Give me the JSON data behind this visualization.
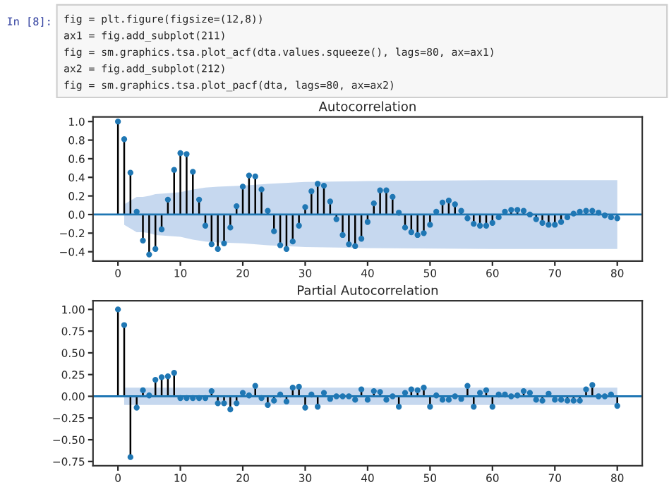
{
  "chart_data": [
    {
      "type": "lollipop",
      "title": "Autocorrelation",
      "annotations": [
        "In [8]:",
        "fig = plt.figure(figsize=(12,8))",
        "ax1 = fig.add_subplot(211)",
        "fig = sm.graphics.tsa.plot_acf(dta.values.squeeze(), lags=80, ax=ax1)",
        "ax2 = fig.add_subplot(212)",
        "fig = sm.graphics.tsa.plot_pacf(dta, lags=80, ax=ax2)"
      ],
      "x": [
        0,
        1,
        2,
        3,
        4,
        5,
        6,
        7,
        8,
        9,
        10,
        11,
        12,
        13,
        14,
        15,
        16,
        17,
        18,
        19,
        20,
        21,
        22,
        23,
        24,
        25,
        26,
        27,
        28,
        29,
        30,
        31,
        32,
        33,
        34,
        35,
        36,
        37,
        38,
        39,
        40,
        41,
        42,
        43,
        44,
        45,
        46,
        47,
        48,
        49,
        50,
        51,
        52,
        53,
        54,
        55,
        56,
        57,
        58,
        59,
        60,
        61,
        62,
        63,
        64,
        65,
        66,
        67,
        68,
        69,
        70,
        71,
        72,
        73,
        74,
        75,
        76,
        77,
        78,
        79,
        80
      ],
      "series": [
        {
          "color": "#1f77b4",
          "values": [
            1.0,
            0.81,
            0.45,
            0.03,
            -0.28,
            -0.43,
            -0.37,
            -0.16,
            0.16,
            0.48,
            0.66,
            0.65,
            0.46,
            0.16,
            -0.12,
            -0.32,
            -0.37,
            -0.31,
            -0.14,
            0.09,
            0.3,
            0.42,
            0.41,
            0.27,
            0.04,
            -0.18,
            -0.33,
            -0.37,
            -0.29,
            -0.12,
            0.08,
            0.25,
            0.33,
            0.31,
            0.14,
            -0.05,
            -0.22,
            -0.32,
            -0.34,
            -0.26,
            -0.08,
            0.12,
            0.26,
            0.26,
            0.19,
            0.02,
            -0.14,
            -0.19,
            -0.22,
            -0.2,
            -0.11,
            0.03,
            0.13,
            0.15,
            0.11,
            0.04,
            -0.04,
            -0.1,
            -0.12,
            -0.12,
            -0.09,
            -0.03,
            0.03,
            0.05,
            0.05,
            0.04,
            0.0,
            -0.05,
            -0.09,
            -0.11,
            -0.11,
            -0.08,
            -0.03,
            0.01,
            0.03,
            0.04,
            0.04,
            0.02,
            -0.01,
            -0.03,
            -0.04
          ]
        },
        {
          "type": "area",
          "color": "#aec7e8",
          "x": [
            1,
            2,
            3,
            4,
            5,
            6,
            8,
            10,
            12,
            14,
            16,
            20,
            24,
            30,
            40,
            60,
            80
          ],
          "values": [
            null,
            null,
            null,
            null,
            null,
            null,
            null,
            null,
            null,
            null,
            null,
            null,
            null,
            null,
            null,
            null,
            null
          ],
          "upper": [
            0.11,
            0.15,
            0.19,
            0.19,
            0.2,
            0.22,
            0.23,
            0.24,
            0.27,
            0.29,
            0.3,
            0.31,
            0.33,
            0.35,
            0.36,
            0.37,
            0.37
          ],
          "lower": [
            -0.11,
            -0.15,
            -0.19,
            -0.19,
            -0.2,
            -0.22,
            -0.23,
            -0.24,
            -0.27,
            -0.29,
            -0.3,
            -0.31,
            -0.33,
            -0.35,
            -0.36,
            -0.37,
            -0.37
          ]
        }
      ],
      "ref_lines": [
        {
          "axis": "y",
          "value": 0,
          "color": "#1f77b4"
        }
      ],
      "xlim": [
        -4,
        84
      ],
      "xticks": [
        0,
        10,
        20,
        30,
        40,
        50,
        60,
        70,
        80
      ],
      "ylim": [
        -0.5,
        1.05
      ],
      "yticks": [
        -0.4,
        -0.2,
        {
          "value": 0,
          "label": "0.0"
        },
        0.2,
        0.4,
        0.6,
        0.8,
        {
          "value": 1,
          "label": "1.0"
        }
      ],
      "marker": "circle",
      "grid": false,
      "legend": false
    },
    {
      "type": "lollipop",
      "title": "Partial Autocorrelation",
      "x": [
        0,
        1,
        2,
        3,
        4,
        5,
        6,
        7,
        8,
        9,
        10,
        11,
        12,
        13,
        14,
        15,
        16,
        17,
        18,
        19,
        20,
        21,
        22,
        23,
        24,
        25,
        26,
        27,
        28,
        29,
        30,
        31,
        32,
        33,
        34,
        35,
        36,
        37,
        38,
        39,
        40,
        41,
        42,
        43,
        44,
        45,
        46,
        47,
        48,
        49,
        50,
        51,
        52,
        53,
        54,
        55,
        56,
        57,
        58,
        59,
        60,
        61,
        62,
        63,
        64,
        65,
        66,
        67,
        68,
        69,
        70,
        71,
        72,
        73,
        74,
        75,
        76,
        77,
        78,
        79,
        80
      ],
      "series": [
        {
          "color": "#1f77b4",
          "values": [
            1.0,
            0.82,
            -0.7,
            -0.13,
            0.07,
            0.01,
            0.19,
            0.22,
            0.23,
            0.27,
            -0.02,
            -0.02,
            -0.02,
            -0.02,
            -0.02,
            0.06,
            -0.08,
            -0.08,
            -0.15,
            -0.08,
            0.04,
            0.01,
            0.12,
            -0.02,
            -0.1,
            -0.05,
            0.02,
            -0.06,
            0.1,
            0.11,
            -0.13,
            0.02,
            -0.12,
            0.04,
            -0.03,
            0.0,
            0.0,
            0.0,
            -0.04,
            0.08,
            -0.04,
            0.06,
            0.05,
            -0.04,
            0.0,
            -0.12,
            0.04,
            0.08,
            0.07,
            0.1,
            -0.12,
            0.01,
            -0.04,
            -0.04,
            0.0,
            -0.03,
            0.12,
            -0.12,
            0.04,
            0.07,
            -0.12,
            0.02,
            0.02,
            0.0,
            0.01,
            0.06,
            0.04,
            -0.04,
            -0.05,
            0.03,
            -0.04,
            -0.04,
            -0.05,
            -0.05,
            -0.05,
            0.08,
            0.13,
            0.0,
            0.0,
            0.02,
            -0.11
          ]
        },
        {
          "type": "area",
          "color": "#aec7e8",
          "x": [
            1,
            80
          ],
          "values": [
            null,
            null
          ],
          "upper": [
            0.1,
            0.1
          ],
          "lower": [
            -0.1,
            -0.1
          ]
        }
      ],
      "ref_lines": [
        {
          "axis": "y",
          "value": 0,
          "color": "#1f77b4"
        }
      ],
      "xlim": [
        -4,
        84
      ],
      "xticks": [
        0,
        10,
        20,
        30,
        40,
        50,
        60,
        70,
        80
      ],
      "ylim": [
        -0.8,
        1.1
      ],
      "yticks": [
        {
          "value": -0.75,
          "label": "−0.75"
        },
        {
          "value": -0.5,
          "label": "−0.50"
        },
        {
          "value": -0.25,
          "label": "−0.25"
        },
        {
          "value": 0,
          "label": "0.00"
        },
        {
          "value": 0.25,
          "label": "0.25"
        },
        {
          "value": 0.5,
          "label": "0.50"
        },
        {
          "value": 0.75,
          "label": "0.75"
        },
        {
          "value": 1.0,
          "label": "1.00"
        }
      ],
      "marker": "circle",
      "grid": false,
      "legend": false
    }
  ]
}
